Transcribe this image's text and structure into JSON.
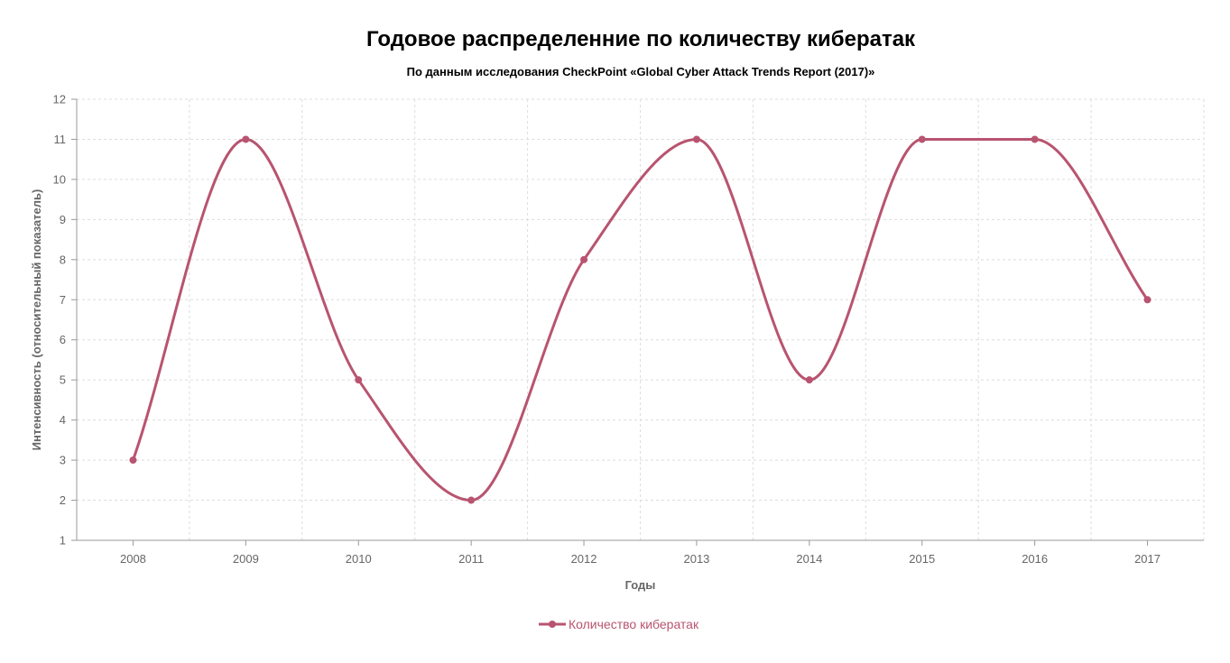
{
  "chart_data": {
    "type": "line",
    "title": "Годовое распределенние по количеству кибератак",
    "subtitle": "По данным исследования CheckPoint «Global Cyber Attack Trends Report (2017)»",
    "xlabel": "Годы",
    "ylabel": "Интенсивность (относительный показатель)",
    "categories": [
      "2008",
      "2009",
      "2010",
      "2011",
      "2012",
      "2013",
      "2014",
      "2015",
      "2016",
      "2017"
    ],
    "series": [
      {
        "name": "Количество кибератак",
        "values": [
          3,
          11,
          5,
          2,
          8,
          11,
          5,
          11,
          11,
          7
        ],
        "color": "#b85470"
      }
    ],
    "ylim": [
      1,
      12
    ],
    "yticks": [
      "1",
      "2",
      "3",
      "4",
      "5",
      "6",
      "7",
      "8",
      "9",
      "10",
      "11",
      "12"
    ],
    "grid": true,
    "legend": "bottom-center",
    "line_style": "smooth"
  }
}
